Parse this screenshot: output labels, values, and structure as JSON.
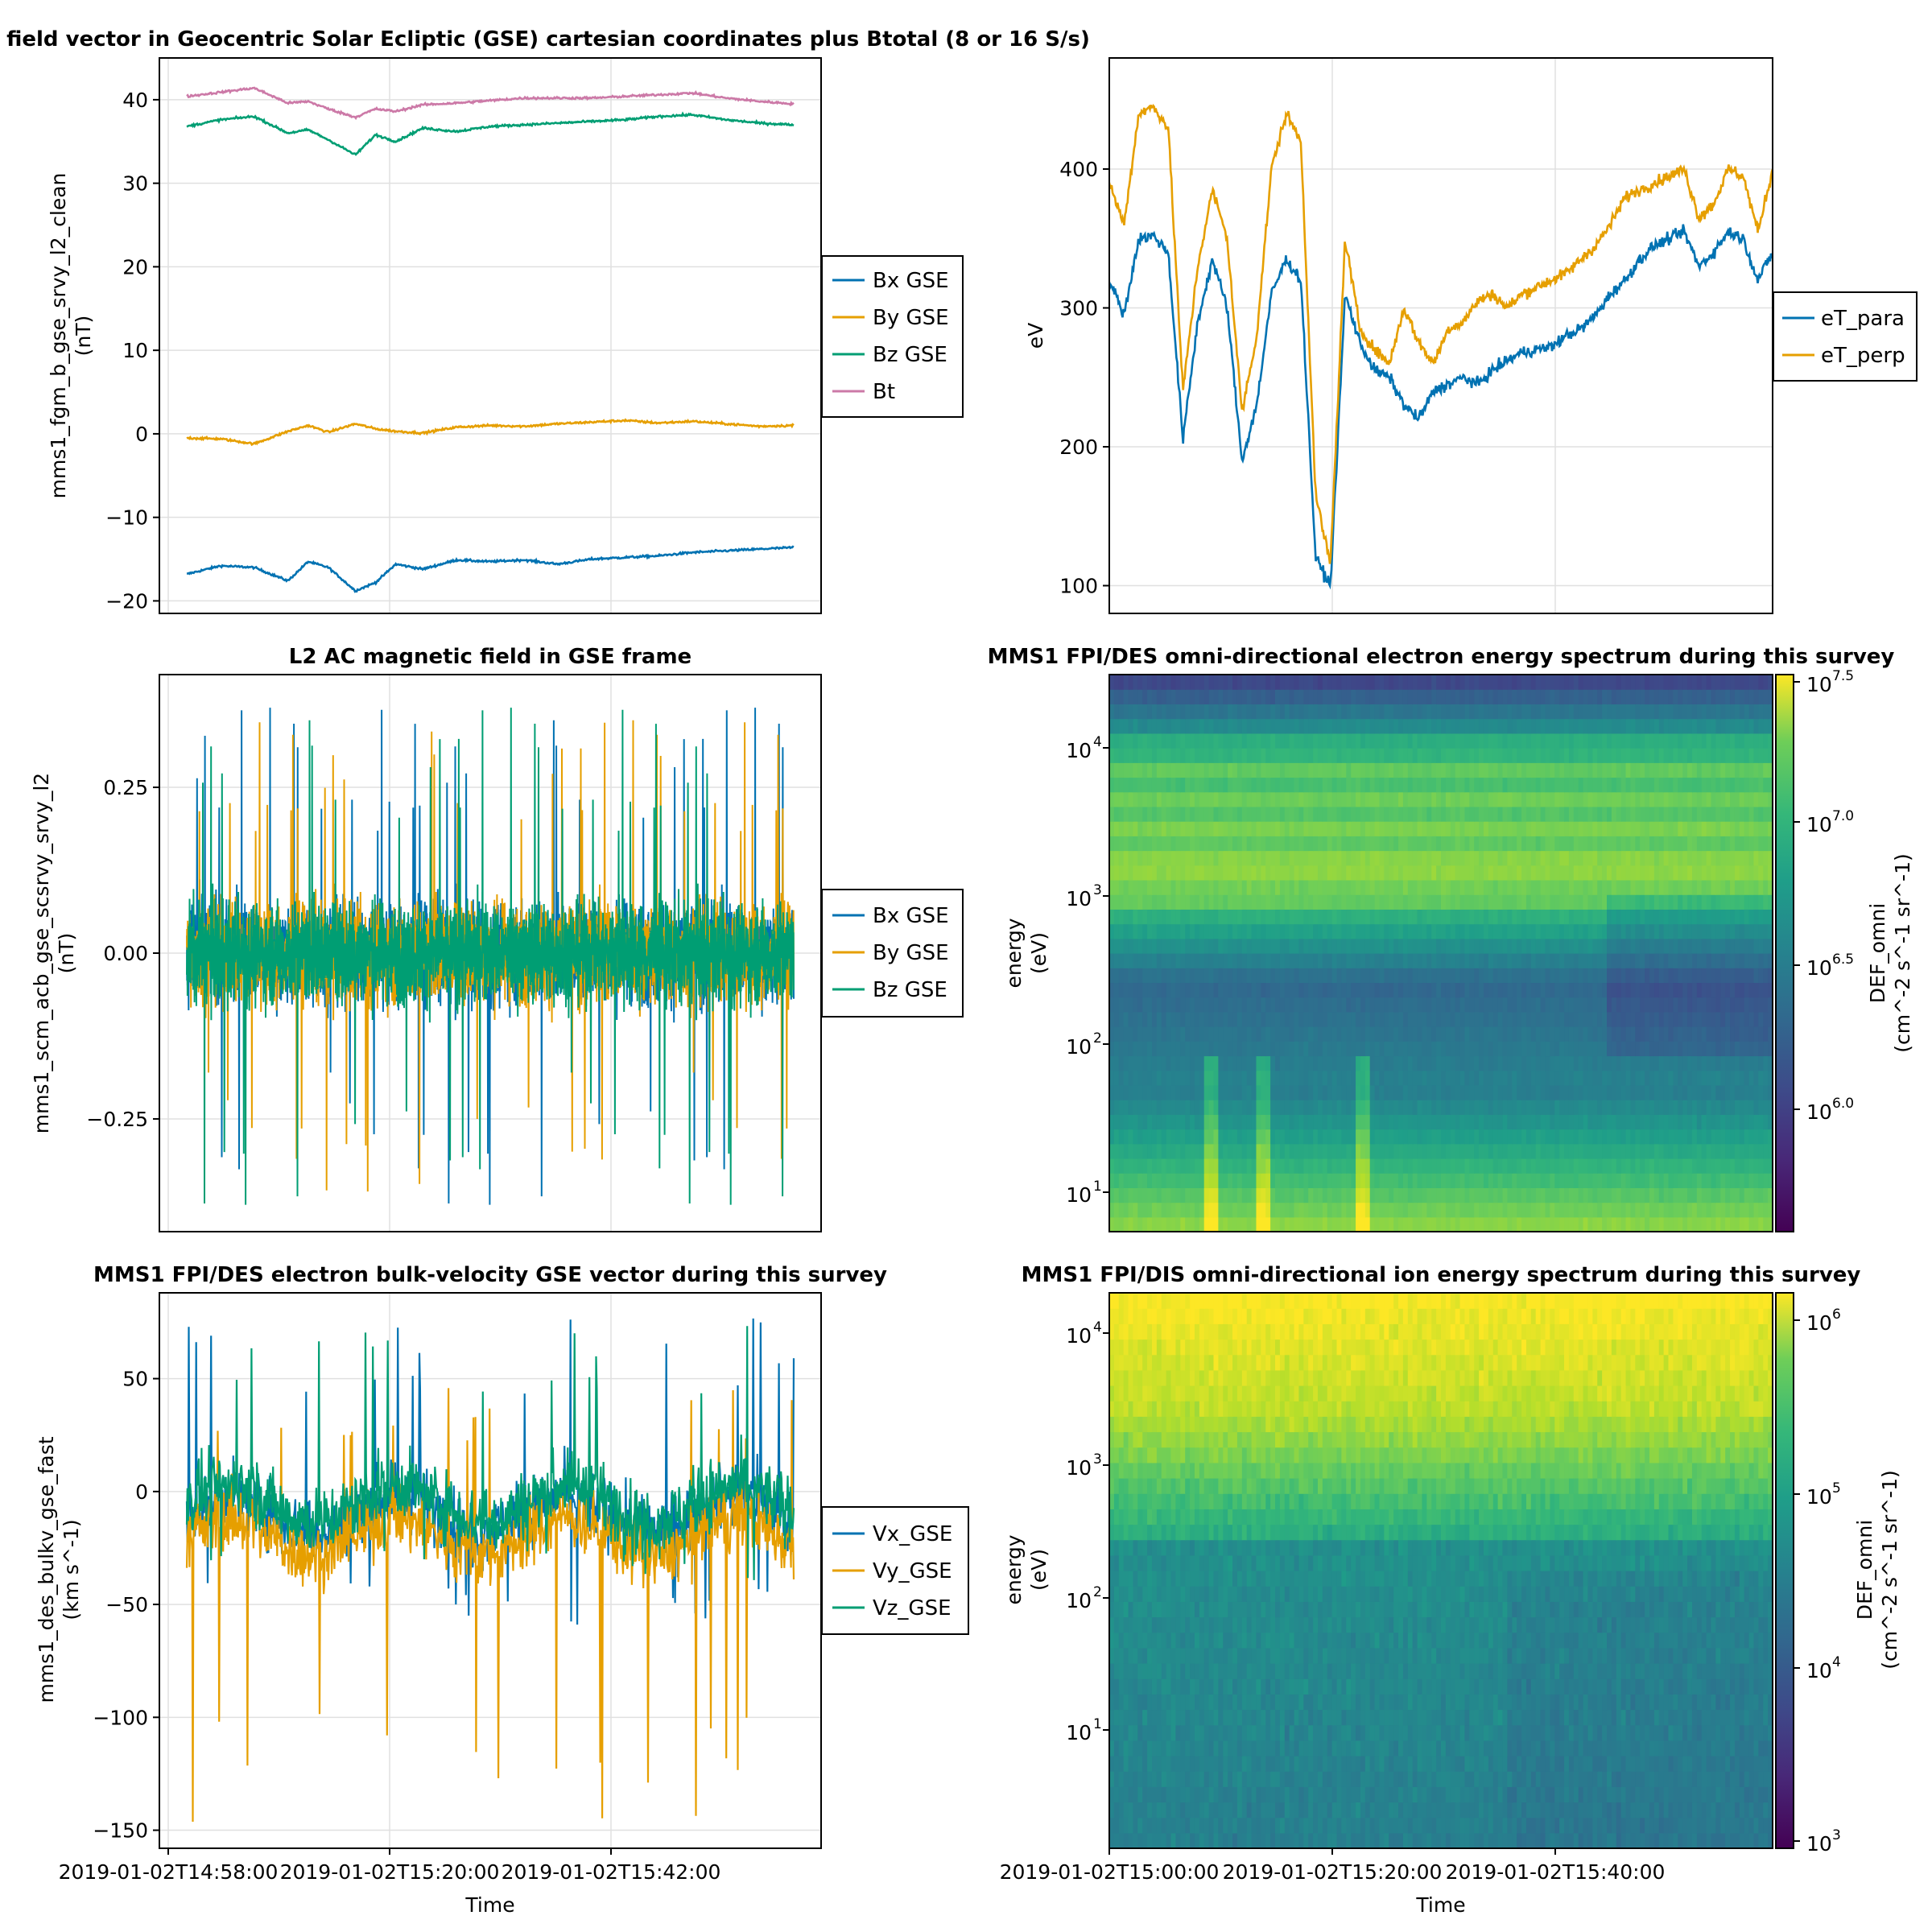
{
  "colors": {
    "blue": "#0072b2",
    "orange": "#e69f00",
    "green": "#009e73",
    "pink": "#cc79a7"
  },
  "chart_data": [
    {
      "id": "fgm",
      "type": "line",
      "title": "Magnetic field vector in Geocentric Solar Ecliptic (GSE) cartesian coordinates plus Btotal (8 or 16 S/s)",
      "xlabel": "",
      "ylabel_lines": [
        "mms1_fgm_b_gse_srvy_l2_clean",
        "(nT)"
      ],
      "ylim": [
        -21.5,
        45
      ],
      "yticks": [
        -20,
        -10,
        0,
        10,
        20,
        30,
        40
      ],
      "ytick_labels": [
        "−20",
        "−10",
        "0",
        "10",
        "20",
        "30",
        "40"
      ],
      "legend": [
        "Bx GSE",
        "By GSE",
        "Bz GSE",
        "Bt"
      ],
      "x_minutes": [
        0,
        5,
        10,
        15,
        18,
        21,
        25,
        28,
        31,
        35,
        40,
        45,
        50,
        55,
        60,
        65,
        70,
        75,
        80,
        85,
        90
      ],
      "series": [
        {
          "name": "Bx GSE",
          "color": "blue",
          "values": [
            -16.8,
            -15.8,
            -16.0,
            -17.6,
            -15.3,
            -16.0,
            -18.8,
            -17.8,
            -15.6,
            -16.2,
            -15.1,
            -15.3,
            -15.1,
            -15.6,
            -15.0,
            -14.8,
            -14.6,
            -14.2,
            -14.0,
            -13.8,
            -13.6
          ]
        },
        {
          "name": "By GSE",
          "color": "orange",
          "values": [
            -0.5,
            -0.6,
            -1.2,
            0.3,
            1.0,
            0.2,
            1.2,
            0.6,
            0.3,
            0.1,
            0.8,
            1.0,
            0.9,
            1.2,
            1.4,
            1.6,
            1.3,
            1.5,
            1.2,
            0.9,
            1.0
          ]
        },
        {
          "name": "Bz GSE",
          "color": "green",
          "values": [
            36.8,
            37.6,
            38.0,
            36.0,
            36.4,
            35.2,
            33.4,
            35.8,
            35.0,
            36.6,
            36.2,
            36.8,
            37.0,
            37.2,
            37.4,
            37.6,
            38.0,
            38.2,
            37.6,
            37.2,
            37.0
          ]
        },
        {
          "name": "Bt",
          "color": "pink",
          "values": [
            40.4,
            40.9,
            41.4,
            39.6,
            39.8,
            38.9,
            37.9,
            38.9,
            38.6,
            39.4,
            39.6,
            39.9,
            40.2,
            40.2,
            40.2,
            40.4,
            40.6,
            40.8,
            40.2,
            39.8,
            39.5
          ]
        }
      ]
    },
    {
      "id": "temp",
      "type": "line",
      "title": "",
      "xlabel": "",
      "ylabel_lines": [
        "eV"
      ],
      "ylim": [
        80,
        480
      ],
      "yticks": [
        100,
        200,
        300,
        400
      ],
      "ytick_labels": [
        "100",
        "200",
        "300",
        "400"
      ],
      "legend": [
        "eT_para",
        "eT_perp"
      ],
      "x_minutes": [
        0,
        2,
        4,
        6,
        8,
        10,
        12,
        14,
        16,
        18,
        20,
        22,
        24,
        26,
        28,
        30,
        32,
        34,
        36,
        38,
        40,
        42,
        44,
        46,
        48,
        50,
        52,
        54,
        56,
        58,
        60,
        62,
        64,
        66,
        68,
        70,
        72,
        74,
        76,
        78,
        80,
        82,
        84,
        86,
        88,
        90
      ],
      "series": [
        {
          "name": "eT_para",
          "color": "blue",
          "values": [
            320,
            295,
            350,
            352,
            340,
            205,
            290,
            335,
            300,
            190,
            230,
            310,
            335,
            320,
            120,
            100,
            310,
            275,
            255,
            250,
            230,
            220,
            240,
            245,
            250,
            245,
            255,
            262,
            268,
            270,
            272,
            280,
            285,
            295,
            310,
            320,
            335,
            345,
            350,
            355,
            330,
            340,
            355,
            350,
            320,
            340
          ]
        },
        {
          "name": "eT_perp",
          "color": "orange",
          "values": [
            390,
            360,
            440,
            445,
            430,
            240,
            330,
            385,
            350,
            225,
            280,
            400,
            440,
            420,
            165,
            115,
            350,
            285,
            270,
            260,
            300,
            275,
            260,
            285,
            290,
            305,
            310,
            300,
            310,
            315,
            320,
            325,
            335,
            345,
            360,
            380,
            385,
            390,
            395,
            400,
            365,
            375,
            400,
            395,
            355,
            400
          ]
        }
      ]
    },
    {
      "id": "scm",
      "type": "line",
      "title": "L2 AC magnetic field in GSE frame",
      "xlabel": "",
      "ylabel_lines": [
        "mms1_scm_acb_gse_scsrvy_srvy_l2",
        "(nT)"
      ],
      "ylim": [
        -0.42,
        0.42
      ],
      "yticks": [
        -0.25,
        0,
        0.25
      ],
      "ytick_labels": [
        "−0.25",
        "0.00",
        "0.25"
      ],
      "legend": [
        "Bx GSE",
        "By GSE",
        "Bz GSE"
      ],
      "series": [
        {
          "name": "Bx GSE",
          "color": "blue",
          "max_abs": 0.38
        },
        {
          "name": "By GSE",
          "color": "orange",
          "max_abs": 0.36
        },
        {
          "name": "Bz GSE",
          "color": "green",
          "max_abs": 0.38
        }
      ]
    },
    {
      "id": "espec",
      "type": "heatmap",
      "title": "MMS1 FPI/DES omni-directional electron energy spectrum during this survey",
      "xlabel": "",
      "ylabel_lines": [
        "energy",
        "(eV)"
      ],
      "yscale": "log",
      "ytick_labels": [
        {
          "base": "10",
          "exp": "1"
        },
        {
          "base": "10",
          "exp": "2"
        },
        {
          "base": "10",
          "exp": "3"
        },
        {
          "base": "10",
          "exp": "4"
        }
      ],
      "colorbar_label": [
        "DEF_omni",
        "(cm^-2 s^-1 sr^-1)"
      ],
      "colorbar_ticks": [
        {
          "base": "10",
          "exp": "6.0"
        },
        {
          "base": "10",
          "exp": "6.5"
        },
        {
          "base": "10",
          "exp": "7.0"
        },
        {
          "base": "10",
          "exp": "7.5"
        }
      ]
    },
    {
      "id": "vel",
      "type": "line",
      "title": "MMS1 FPI/DES electron bulk-velocity GSE vector during this survey",
      "xlabel": "Time",
      "ylabel_lines": [
        "mms1_des_bulkv_gse_fast",
        "(km s^-1)"
      ],
      "ylim": [
        -158,
        88
      ],
      "yticks": [
        -150,
        -100,
        -50,
        0,
        50
      ],
      "ytick_labels": [
        "−150",
        "−100",
        "−50",
        "0",
        "50"
      ],
      "xtick_labels": [
        "2019-01-02T14:58:00",
        "2019-01-02T15:20:00",
        "2019-01-02T15:42:00"
      ],
      "legend": [
        "Vx_GSE",
        "Vy_GSE",
        "Vz_GSE"
      ],
      "series": [
        {
          "name": "Vx_GSE",
          "color": "blue",
          "mean": -10,
          "min": -60,
          "max": 78
        },
        {
          "name": "Vy_GSE",
          "color": "orange",
          "mean": -20,
          "min": -147,
          "max": 50
        },
        {
          "name": "Vz_GSE",
          "color": "green",
          "mean": -5,
          "min": -40,
          "max": 75
        }
      ]
    },
    {
      "id": "ispec",
      "type": "heatmap",
      "title": "MMS1 FPI/DIS omni-directional ion energy spectrum during this survey",
      "xlabel": "Time",
      "ylabel_lines": [
        "energy",
        "(eV)"
      ],
      "yscale": "log",
      "ytick_labels": [
        {
          "base": "10",
          "exp": "1"
        },
        {
          "base": "10",
          "exp": "2"
        },
        {
          "base": "10",
          "exp": "3"
        },
        {
          "base": "10",
          "exp": "4"
        }
      ],
      "xtick_labels": [
        "2019-01-02T15:00:00",
        "2019-01-02T15:20:00",
        "2019-01-02T15:40:00"
      ],
      "colorbar_label": [
        "DEF_omni",
        "(cm^-2 s^-1 sr^-1)"
      ],
      "colorbar_ticks": [
        {
          "base": "10",
          "exp": "3"
        },
        {
          "base": "10",
          "exp": "4"
        },
        {
          "base": "10",
          "exp": "5"
        },
        {
          "base": "10",
          "exp": "6"
        }
      ]
    }
  ]
}
